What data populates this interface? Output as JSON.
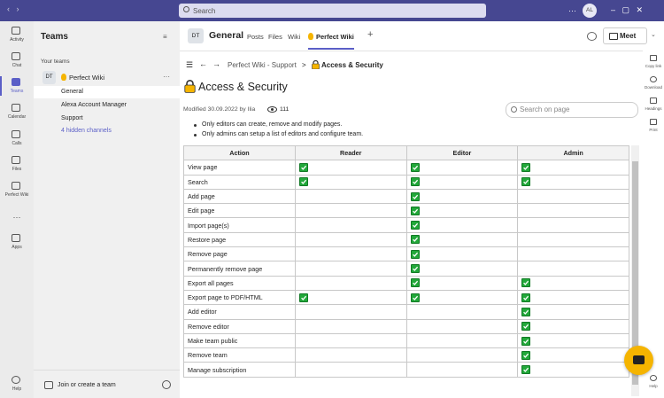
{
  "topbar": {
    "search": "Search",
    "avatar": "AL"
  },
  "rail": {
    "items": [
      "Activity",
      "Chat",
      "Teams",
      "Calendar",
      "Calls",
      "Files",
      "Perfect Wiki",
      "Apps"
    ],
    "help": "Help"
  },
  "teams_panel": {
    "title": "Teams",
    "section": "Your teams",
    "team": {
      "badge": "DT",
      "name": "Perfect Wiki"
    },
    "channels": [
      "General",
      "Alexa Account Manager",
      "Support"
    ],
    "hidden": "4 hidden channels",
    "join": "Join or create a team"
  },
  "channel_header": {
    "badge": "DT",
    "name": "General",
    "tabs": [
      "Posts",
      "Files",
      "Wiki",
      "Perfect Wiki"
    ],
    "meet": "Meet"
  },
  "wiki": {
    "breadcrumb": [
      "Perfect Wiki - Support",
      "Access & Security"
    ],
    "separator": ">",
    "title": "Access & Security",
    "modified": "Modified 30.09.2022 by Ilia",
    "views": "111",
    "search": "Search on page",
    "bullets": [
      "Only editors can create, remove and modify pages.",
      "Only admins can setup a list of editors and configure team."
    ],
    "table": {
      "headers": [
        "Action",
        "Reader",
        "Editor",
        "Admin"
      ],
      "rows": [
        [
          "View page",
          true,
          true,
          true
        ],
        [
          "Search",
          true,
          true,
          true
        ],
        [
          "Add page",
          false,
          true,
          false
        ],
        [
          "Edit page",
          false,
          true,
          false
        ],
        [
          "Import page(s)",
          false,
          true,
          false
        ],
        [
          "Restore page",
          false,
          true,
          false
        ],
        [
          "Remove page",
          false,
          true,
          false
        ],
        [
          "Permanently remove page",
          false,
          true,
          false
        ],
        [
          "Export all pages",
          false,
          true,
          true
        ],
        [
          "Export page to PDF/HTML",
          true,
          true,
          true
        ],
        [
          "Add editor",
          false,
          false,
          true
        ],
        [
          "Remove editor",
          false,
          false,
          true
        ],
        [
          "Make team public",
          false,
          false,
          true
        ],
        [
          "Remove team",
          false,
          false,
          true
        ],
        [
          "Manage subscription",
          false,
          false,
          true
        ]
      ]
    }
  },
  "right_rail": [
    "Copy link",
    "Download",
    "Headings",
    "Print",
    "Help"
  ]
}
